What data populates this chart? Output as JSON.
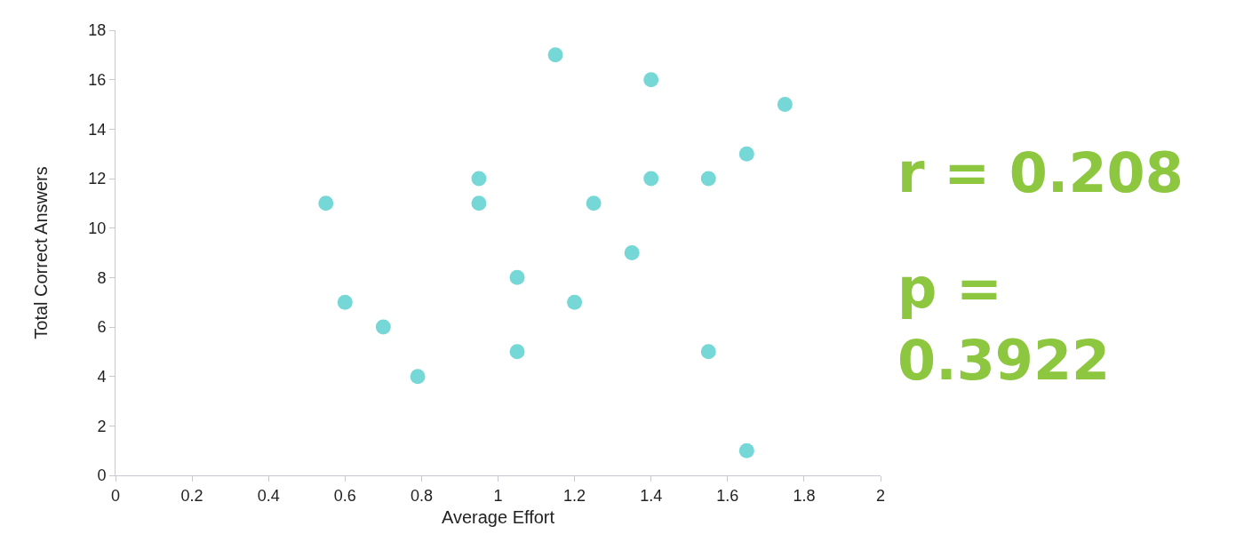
{
  "chart_data": {
    "type": "scatter",
    "xlabel": "Average Effort",
    "ylabel": "Total Correct Answers",
    "x": [
      0.55,
      0.6,
      0.7,
      0.79,
      0.95,
      0.95,
      1.05,
      1.05,
      1.15,
      1.2,
      1.25,
      1.35,
      1.4,
      1.4,
      1.55,
      1.55,
      1.65,
      1.65,
      1.75
    ],
    "values": [
      11,
      7,
      6,
      4,
      12,
      11,
      8,
      5,
      17,
      7,
      11,
      9,
      16,
      12,
      12,
      5,
      13,
      1,
      15
    ],
    "color": "#76d7d7",
    "marker": "circle",
    "xlim": [
      0,
      2
    ],
    "xticks": [
      0,
      0.2,
      0.4,
      0.6,
      0.8,
      1,
      1.2,
      1.4,
      1.6,
      1.8,
      2
    ],
    "ylim": [
      0,
      18
    ],
    "yticks": [
      0,
      2,
      4,
      6,
      8,
      10,
      12,
      14,
      16,
      18
    ],
    "legend": false,
    "annotations": [
      "r = 0.208",
      "p = 0.3922"
    ]
  }
}
